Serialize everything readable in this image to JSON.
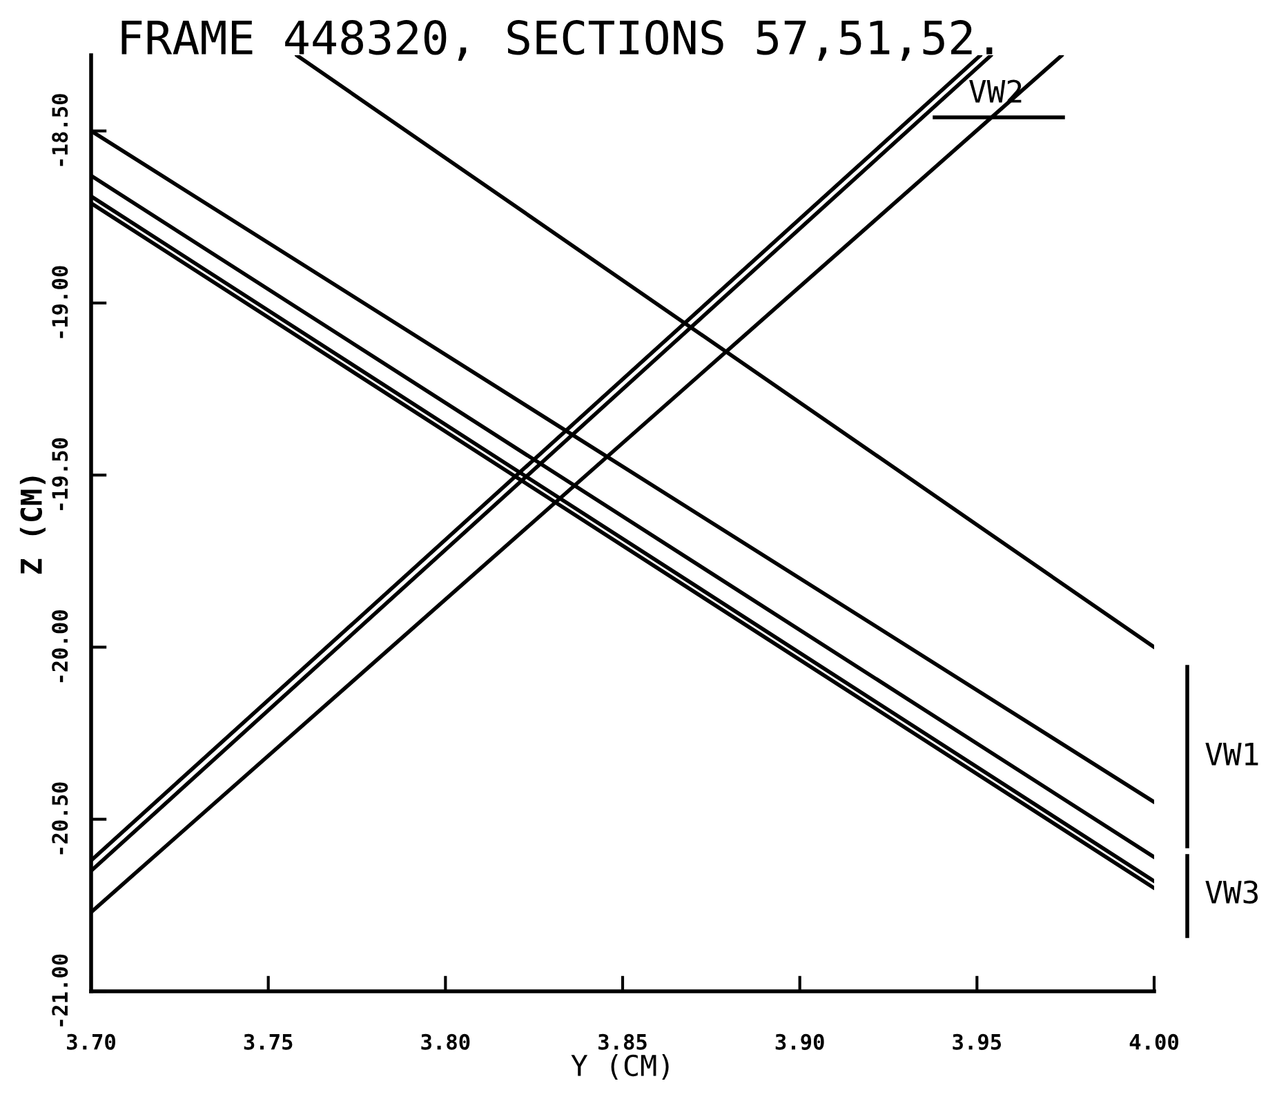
{
  "chart_data": {
    "type": "line",
    "title": "FRAME 448320, SECTIONS 57,51,52.",
    "xlabel": "Y (CM)",
    "ylabel": "Z (CM)",
    "xlim": [
      3.7,
      4.0
    ],
    "ylim": [
      -21.0,
      -18.28
    ],
    "xticks": [
      {
        "value": 3.7,
        "label": "3.70"
      },
      {
        "value": 3.75,
        "label": "3.75"
      },
      {
        "value": 3.8,
        "label": "3.80"
      },
      {
        "value": 3.85,
        "label": "3.85"
      },
      {
        "value": 3.9,
        "label": "3.90"
      },
      {
        "value": 3.95,
        "label": "3.95"
      },
      {
        "value": 4.0,
        "label": "4.00"
      }
    ],
    "yticks": [
      {
        "value": -18.5,
        "label": "-18.50"
      },
      {
        "value": -19.0,
        "label": "-19.00"
      },
      {
        "value": -19.5,
        "label": "-19.50"
      },
      {
        "value": -20.0,
        "label": "-20.00"
      },
      {
        "value": -20.5,
        "label": "-20.50"
      },
      {
        "value": -21.0,
        "label": "-21.00"
      }
    ],
    "grid": false,
    "line_style": "solid",
    "marker": "none",
    "series": [
      {
        "color": "#000000",
        "x": [
          3.758,
          4.0
        ],
        "values": [
          -18.28,
          -20.0
        ]
      },
      {
        "color": "#000000",
        "x": [
          3.7,
          4.0
        ],
        "values": [
          -18.5,
          -20.45
        ]
      },
      {
        "color": "#000000",
        "x": [
          3.7,
          4.0
        ],
        "values": [
          -18.63,
          -20.61
        ]
      },
      {
        "color": "#000000",
        "x": [
          3.7,
          4.0
        ],
        "values": [
          -18.69,
          -20.68
        ]
      },
      {
        "color": "#000000",
        "x": [
          3.7,
          4.0
        ],
        "values": [
          -18.71,
          -20.7
        ]
      },
      {
        "color": "#000000",
        "x": [
          3.7,
          3.951
        ],
        "values": [
          -20.62,
          -18.28
        ]
      },
      {
        "color": "#000000",
        "x": [
          3.7,
          3.954
        ],
        "values": [
          -20.65,
          -18.28
        ]
      },
      {
        "color": "#000000",
        "x": [
          3.7,
          3.974
        ],
        "values": [
          -20.77,
          -18.28
        ]
      }
    ],
    "annotations": [
      "VW1",
      "VW2",
      "VW3"
    ]
  }
}
